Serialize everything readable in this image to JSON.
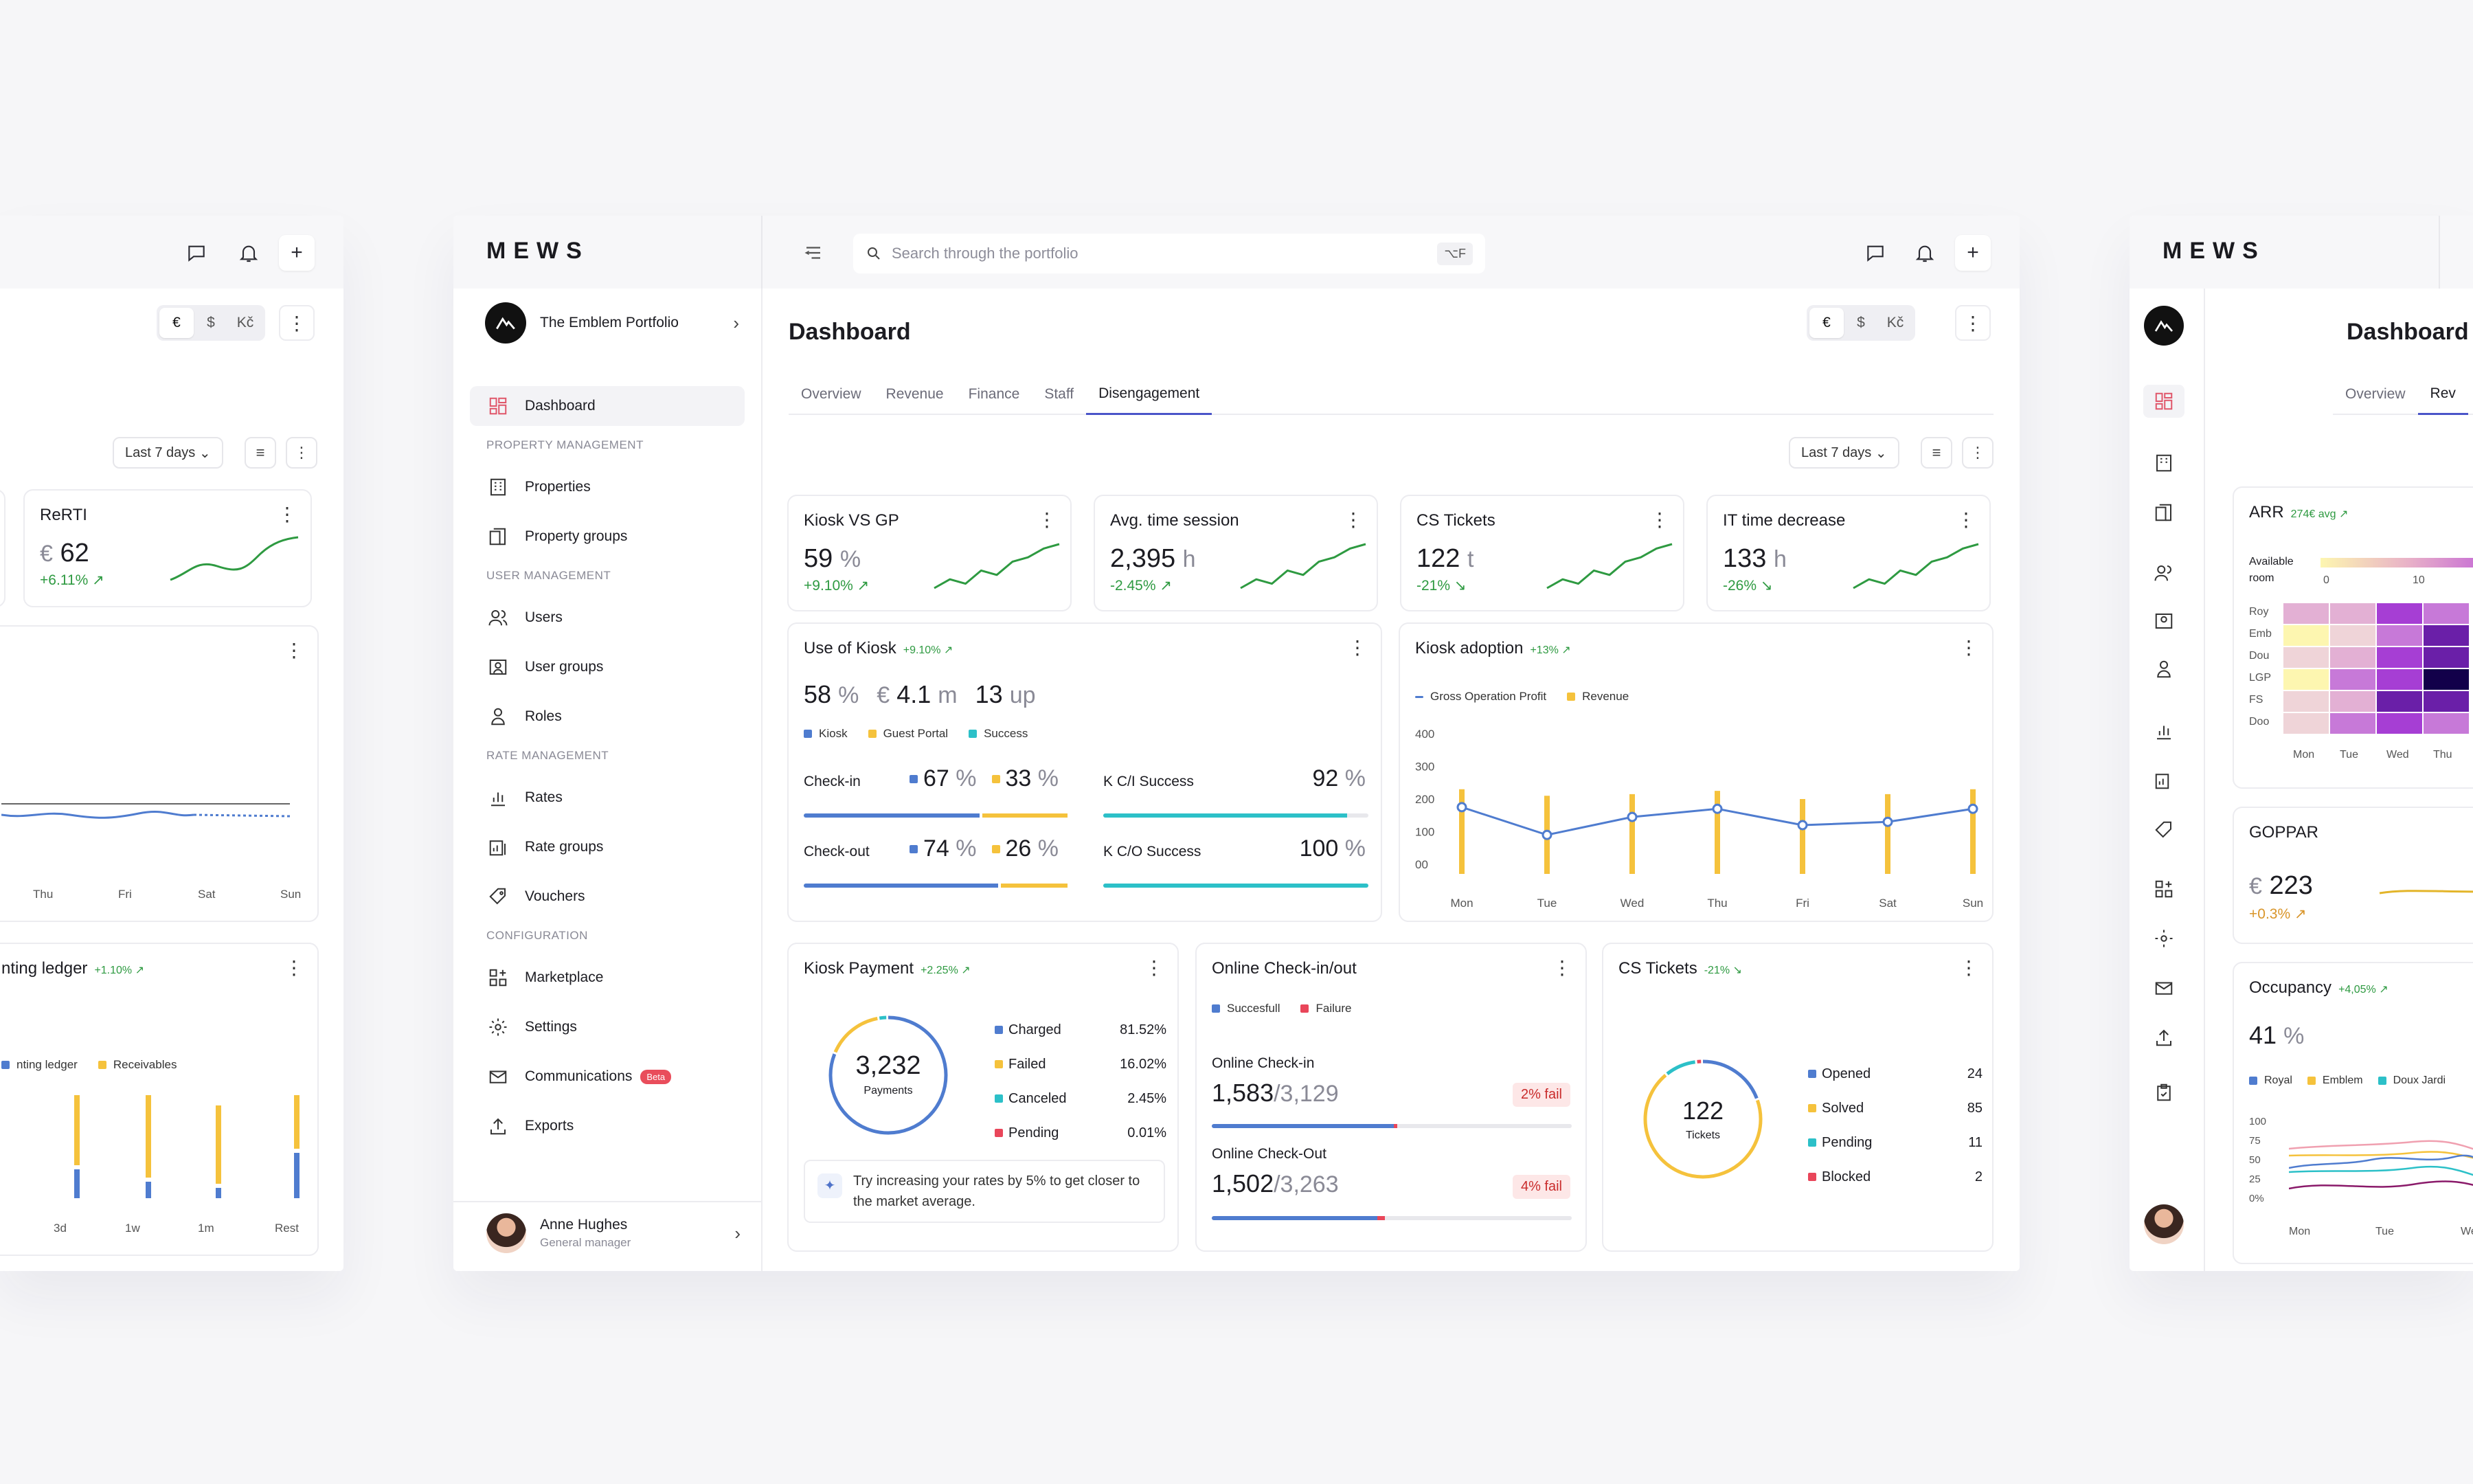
{
  "brand": "MEWS",
  "search": {
    "placeholder": "Search through the portfolio",
    "shortcut": "⌥F"
  },
  "org": {
    "name": "The Emblem Portfolio"
  },
  "nav": {
    "dashboard": "Dashboard",
    "property_management": "PROPERTY MANAGEMENT",
    "properties": "Properties",
    "property_groups": "Property groups",
    "user_management": "USER MANAGEMENT",
    "users": "Users",
    "user_groups": "User groups",
    "roles": "Roles",
    "rate_management": "RATE MANAGEMENT",
    "rates": "Rates",
    "rate_groups": "Rate groups",
    "vouchers": "Vouchers",
    "configuration": "CONFIGURATION",
    "marketplace": "Marketplace",
    "settings": "Settings",
    "communications": "Communications",
    "beta": "Beta",
    "exports": "Exports"
  },
  "user": {
    "name": "Anne Hughes",
    "role": "General manager"
  },
  "page": {
    "title": "Dashboard"
  },
  "currency": {
    "eur": "€",
    "usd": "$",
    "czk": "Kč"
  },
  "tabs": [
    "Overview",
    "Revenue",
    "Finance",
    "Staff",
    "Disengagement"
  ],
  "range": {
    "label": "Last 7 days"
  },
  "kpis": [
    {
      "title": "Kiosk VS GP",
      "value": "59",
      "unit": "%",
      "change": "+9.10%",
      "trend": "up",
      "spark": [
        2,
        3,
        2.5,
        4,
        3.5,
        5,
        5.5,
        6.5,
        7
      ]
    },
    {
      "title": "Avg. time session",
      "value": "2,395",
      "unit": "h",
      "change": "-2.45%",
      "trend": "up",
      "spark": [
        2,
        3,
        2.5,
        4,
        3.5,
        5,
        5.5,
        6.5,
        7
      ]
    },
    {
      "title": "CS Tickets",
      "value": "122",
      "unit": "t",
      "change": "-21%",
      "trend": "down",
      "spark": [
        2,
        3,
        2.5,
        4,
        3.5,
        5,
        5.5,
        6.5,
        7
      ]
    },
    {
      "title": "IT time decrease",
      "value": "133",
      "unit": "h",
      "change": "-26%",
      "trend": "down",
      "spark": [
        2,
        3,
        2.5,
        4,
        3.5,
        5,
        5.5,
        6.5,
        7
      ]
    }
  ],
  "kiosk_use": {
    "title": "Use of Kiosk",
    "change": "+9.10%",
    "stat1": "58",
    "stat1_unit": "%",
    "stat2_prefix": "€",
    "stat2": "4.1",
    "stat2_unit": "m",
    "stat3": "13",
    "stat3_unit": "up",
    "legend": [
      "Kiosk",
      "Guest Portal",
      "Success"
    ],
    "checkin": {
      "label": "Check-in",
      "kiosk": "67",
      "portal": "33",
      "kiosk_pct": 67,
      "portal_pct": 33
    },
    "checkout": {
      "label": "Check-out",
      "kiosk": "74",
      "portal": "26",
      "kiosk_pct": 74,
      "portal_pct": 26
    },
    "kci": {
      "label": "K C/I Success",
      "value": "92",
      "pct": 92
    },
    "kco": {
      "label": "K C/O Success",
      "value": "100",
      "pct": 100
    },
    "percent_sign": "%"
  },
  "chart_data": {
    "type": "line",
    "title": "Kiosk adoption",
    "change": "+13%",
    "x": [
      "Mon",
      "Tue",
      "Wed",
      "Thu",
      "Fri",
      "Sat",
      "Sun"
    ],
    "yticks": [
      "400",
      "300",
      "200",
      "100",
      "00"
    ],
    "ylim": [
      0,
      400
    ],
    "series": [
      {
        "name": "Gross Operation Profit",
        "values": [
          175,
          90,
          145,
          170,
          120,
          130,
          170
        ]
      },
      {
        "name": "Revenue",
        "values": [
          230,
          210,
          215,
          225,
          200,
          215,
          230
        ]
      }
    ],
    "colors": {
      "Gross Operation Profit": "#4f7ccf",
      "Revenue": "#f5c23c"
    }
  },
  "kiosk_payment": {
    "title": "Kiosk Payment",
    "change": "+2.25%",
    "total": "3,232",
    "total_label": "Payments",
    "rows": [
      {
        "label": "Charged",
        "value": "81.52%",
        "color": "#4f7ccf"
      },
      {
        "label": "Failed",
        "value": "16.02%",
        "color": "#f5c23c"
      },
      {
        "label": "Canceled",
        "value": "2.45%",
        "color": "#2cc0c8"
      },
      {
        "label": "Pending",
        "value": "0.01%",
        "color": "#e9465a"
      }
    ],
    "tip": "Try increasing your rates by 5% to get closer to the market average."
  },
  "online": {
    "title": "Online Check-in/out",
    "legend": [
      "Succesfull",
      "Failure"
    ],
    "checkin": {
      "label": "Online Check-in",
      "value": "1,583",
      "total": "/3,129",
      "fail": "2% fail",
      "success_pct": 50.6,
      "fail_pct": 1
    },
    "checkout": {
      "label": "Online Check-Out",
      "value": "1,502",
      "total": "/3,263",
      "fail": "4% fail",
      "success_pct": 46,
      "fail_pct": 2
    }
  },
  "cs_tickets": {
    "title": "CS Tickets",
    "change": "-21%",
    "total": "122",
    "total_label": "Tickets",
    "rows": [
      {
        "label": "Opened",
        "value": "24",
        "color": "#4f7ccf"
      },
      {
        "label": "Solved",
        "value": "85",
        "color": "#f5c23c"
      },
      {
        "label": "Pending",
        "value": "11",
        "color": "#2cc0c8"
      },
      {
        "label": "Blocked",
        "value": "2",
        "color": "#e9465a"
      }
    ]
  },
  "left_window": {
    "kpi_title": "ReRTI",
    "kpi_value": "62",
    "kpi_prefix": "€",
    "kpi_change": "+6.11%",
    "days": [
      "Thu",
      "Fri",
      "Sat",
      "Sun"
    ],
    "ledger_title": "nting ledger",
    "ledger_change": "+1.10%",
    "ledger_legend": [
      "nting ledger",
      "Receivables"
    ],
    "ledger_x": [
      "3d",
      "1w",
      "1m",
      "Rest"
    ],
    "ledger_values": [
      {
        "a": 40,
        "b": 14
      },
      {
        "a": 44,
        "b": 8
      },
      {
        "a": 38,
        "b": 5
      },
      {
        "a": 30,
        "b": 22
      }
    ]
  },
  "right_window": {
    "title": "Dashboard",
    "tabs": [
      "Overview",
      "Rev"
    ],
    "arr_title": "ARR",
    "arr_change": "274€ avg",
    "available_room": "Available room",
    "scale": [
      "0",
      "10"
    ],
    "rows": [
      "Roy",
      "Emb",
      "Dou",
      "LGP",
      "FS",
      "Doo"
    ],
    "days": [
      "Mon",
      "Tue",
      "Wed",
      "Thu"
    ],
    "heat": [
      [
        2,
        2,
        4,
        3
      ],
      [
        0,
        1,
        3,
        5
      ],
      [
        1,
        2,
        4,
        5
      ],
      [
        0,
        3,
        4,
        6
      ],
      [
        1,
        2,
        5,
        5
      ],
      [
        1,
        3,
        4,
        3
      ]
    ],
    "goppar_title": "GOPPAR",
    "goppar_value": "223",
    "goppar_prefix": "€",
    "goppar_change": "+0.3%",
    "occ_title": "Occupancy",
    "occ_change": "+4,05%",
    "occ_value": "41",
    "occ_unit": "%",
    "occ_legend": [
      "Royal",
      "Emblem",
      "Doux Jardi"
    ],
    "occ_yticks": [
      "100",
      "75",
      "50",
      "25",
      "0%"
    ],
    "occ_days": [
      "Mon",
      "Tue",
      "Wec"
    ]
  }
}
